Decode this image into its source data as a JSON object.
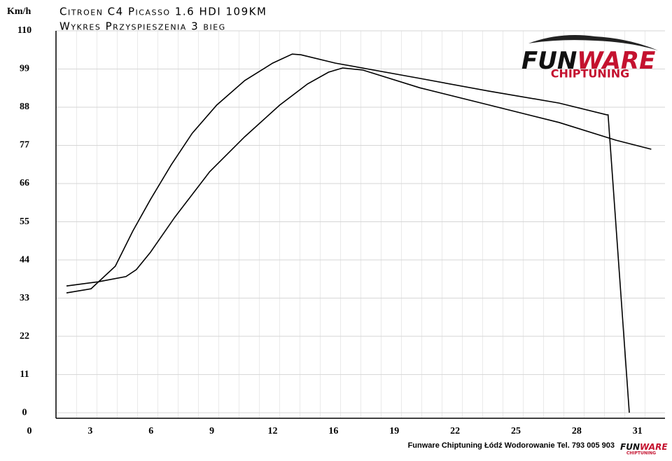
{
  "chart_data": {
    "type": "line",
    "title": "Citroen C4 Picasso 1.6 HDI 109KM",
    "subtitle": "Wykres Przyspieszenia 3 bieg",
    "y_label": "Km/h",
    "footer": "Funware Chiptuning Łódź Wodorowanie Tel. 793 005 903",
    "logo": [
      "FUN",
      "WARE",
      "CHIPTUNING"
    ],
    "xlim": [
      0,
      32.4
    ],
    "ylim": [
      -1.6,
      110
    ],
    "xticks": [
      {
        "value": 0,
        "label": "0"
      },
      {
        "value": 3.1,
        "label": "3"
      },
      {
        "value": 6.2,
        "label": "6"
      },
      {
        "value": 9.3,
        "label": "9"
      },
      {
        "value": 12.4,
        "label": "12"
      },
      {
        "value": 15.5,
        "label": "16"
      },
      {
        "value": 18.6,
        "label": "19"
      },
      {
        "value": 21.7,
        "label": "22"
      },
      {
        "value": 24.8,
        "label": "25"
      },
      {
        "value": 27.9,
        "label": "28"
      },
      {
        "value": 31,
        "label": "31"
      }
    ],
    "yticks": [
      0,
      11,
      22,
      33,
      44,
      55,
      66,
      77,
      88,
      99,
      110
    ],
    "grid": true,
    "series": [
      {
        "color": "#000000",
        "x": [
          1.89,
          3.14,
          4.38,
          5.27,
          6.17,
          7.23,
          8.3,
          9.55,
          10.98,
          12.4,
          13.4,
          13.84,
          15.6,
          19.9,
          23.45,
          27,
          29.44,
          29.5,
          30.58
        ],
        "values": [
          34.5,
          35.7,
          42.2,
          52.3,
          61.4,
          71.4,
          80.5,
          88.6,
          95.7,
          100.7,
          103.3,
          103.1,
          100.7,
          96.3,
          92.6,
          89.2,
          85.8,
          85.8,
          0
        ]
      },
      {
        "color": "#000000",
        "x": [
          1.89,
          3.49,
          4.92,
          5.45,
          6.17,
          7.41,
          9.19,
          10.98,
          12.76,
          14.18,
          15.25,
          15.97,
          17.0,
          19.9,
          23.45,
          27,
          29.9,
          31.7
        ],
        "values": [
          36.5,
          37.7,
          39.2,
          41.2,
          46.2,
          56.3,
          69.4,
          79.5,
          88.6,
          94.7,
          98.1,
          99.3,
          98.7,
          93.6,
          88.6,
          83.6,
          78.5,
          75.9
        ]
      }
    ]
  }
}
